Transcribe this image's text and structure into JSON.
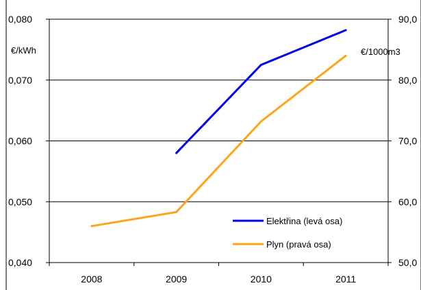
{
  "chart_data": {
    "type": "line",
    "categories": [
      "2008",
      "2009",
      "2010",
      "2011"
    ],
    "y_left": {
      "unit_label": "€/kWh",
      "ylim": [
        0.04,
        0.08
      ],
      "ticks": [
        "0,040",
        "0,050",
        "0,060",
        "0,070",
        "0,080"
      ]
    },
    "y_right": {
      "unit_label": "€/1000m3",
      "ylim": [
        50.0,
        90.0
      ],
      "ticks": [
        "50,0",
        "60,0",
        "70,0",
        "80,0",
        "90,0"
      ]
    },
    "grid": true,
    "legend_position": "bottom-right",
    "series": [
      {
        "name": "Elektřina (levá osa)",
        "axis": "left",
        "color": "#0000ee",
        "values": [
          null,
          0.058,
          0.0725,
          0.0782
        ]
      },
      {
        "name": "Plyn (pravá osa)",
        "axis": "right",
        "color": "#ffa31a",
        "values": [
          56.0,
          58.3,
          73.2,
          84.0
        ]
      }
    ]
  }
}
